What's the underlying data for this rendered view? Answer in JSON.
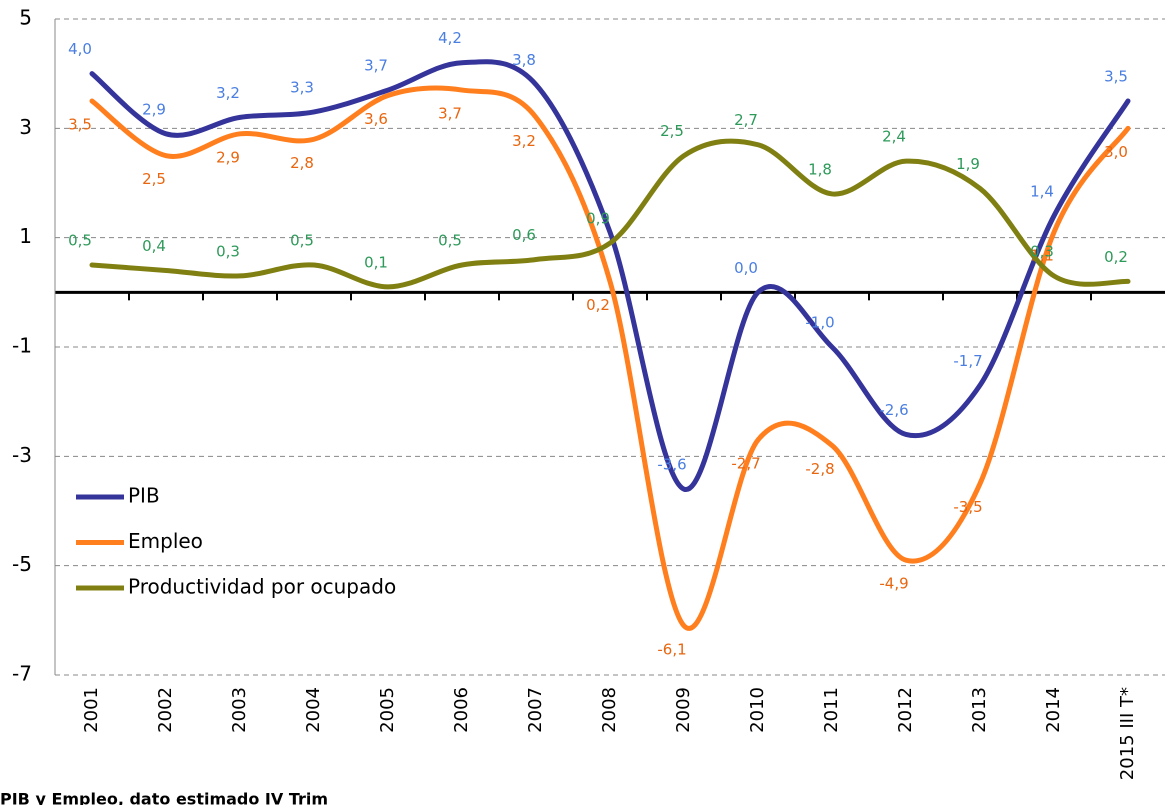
{
  "chart_data": {
    "type": "line",
    "categories": [
      "2001",
      "2002",
      "2003",
      "2004",
      "2005",
      "2006",
      "2007",
      "2008",
      "2009",
      "2010",
      "2011",
      "2012",
      "2013",
      "2014",
      "2015 III T*"
    ],
    "series": [
      {
        "name": "PIB",
        "color": "#35349b",
        "label_color": "#4a7ee0",
        "values": [
          4.0,
          2.9,
          3.2,
          3.3,
          3.7,
          4.2,
          3.8,
          1.1,
          -3.6,
          0.0,
          -1.0,
          -2.6,
          -1.7,
          1.4,
          3.5
        ],
        "value_labels": [
          "4,0",
          "2,9",
          "3,2",
          "3,3",
          "3,7",
          "4,2",
          "3,8",
          null,
          "-3,6",
          "0,0",
          "-1,0",
          "-2,6",
          "-1,7",
          "1,4",
          "3,5"
        ]
      },
      {
        "name": "Empleo",
        "color": "#ff7f1e",
        "label_color": "#e8660f",
        "values": [
          3.5,
          2.5,
          2.9,
          2.8,
          3.6,
          3.7,
          3.2,
          0.2,
          -6.1,
          -2.7,
          -2.8,
          -4.9,
          -3.5,
          1.1,
          3.0
        ],
        "value_labels": [
          "3,5",
          "2,5",
          "2,9",
          "2,8",
          "3,6",
          "3,7",
          "3,2",
          "0,2",
          "-6,1",
          "-2,7",
          "-2,8",
          "-4,9",
          "-3,5",
          "1,1",
          "3,0"
        ]
      },
      {
        "name": "Productividad por ocupado",
        "color": "#808012",
        "label_color": "#2e9a5a",
        "values": [
          0.5,
          0.4,
          0.3,
          0.5,
          0.1,
          0.5,
          0.6,
          0.9,
          2.5,
          2.7,
          1.8,
          2.4,
          1.9,
          0.3,
          0.2
        ],
        "value_labels": [
          "0,5",
          "0,4",
          "0,3",
          "0,5",
          "0,1",
          "0,5",
          "0,6",
          "0,9",
          "2,5",
          "2,7",
          "1,8",
          "2,4",
          "1,9",
          "0,3",
          "0,2"
        ]
      }
    ],
    "ylim": [
      -7,
      5
    ],
    "yticks": [
      -7,
      -5,
      -3,
      -1,
      1,
      3,
      5
    ],
    "grid": true,
    "legend": "left",
    "footnote": "PIB  y Empleo, dato estimado IV Trim"
  }
}
